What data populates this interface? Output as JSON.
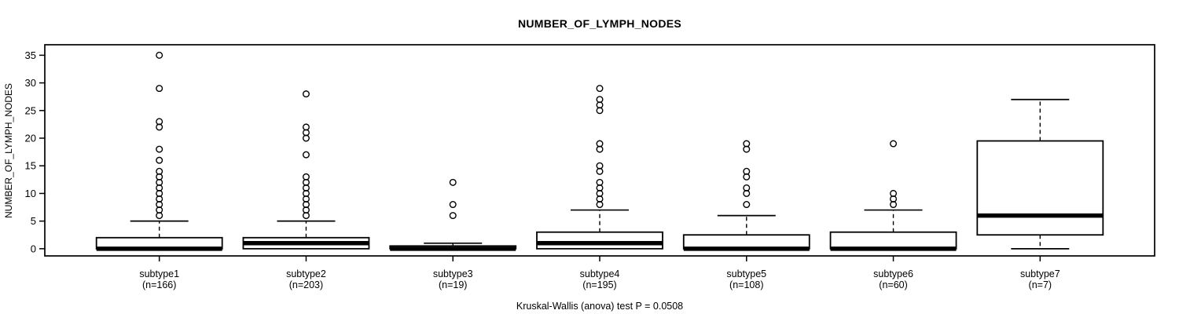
{
  "title": "NUMBER_OF_LYMPH_NODES",
  "chart_data": {
    "type": "boxplot",
    "title": "NUMBER_OF_LYMPH_NODES",
    "ylabel": "NUMBER_OF_LYMPH_NODES",
    "footnote": "Kruskal-Wallis (anova) test P = 0.0508",
    "y_ticks": [
      0,
      5,
      10,
      15,
      20,
      25,
      30,
      35
    ],
    "ylim": [
      0,
      35
    ],
    "grid": false,
    "legend": "none",
    "colors": {
      "line": "#000000",
      "box_fill": "#ffffff",
      "background": "#ffffff"
    },
    "groups": [
      {
        "label": "subtype1",
        "n": 166,
        "n_label": "(n=166)",
        "stats": {
          "low": 0,
          "q1": 0,
          "median": 0,
          "q3": 2,
          "high": 5
        },
        "outliers": [
          6,
          7,
          8,
          9,
          10,
          11,
          12,
          13,
          14,
          16,
          18,
          22,
          23,
          29,
          35
        ]
      },
      {
        "label": "subtype2",
        "n": 203,
        "n_label": "(n=203)",
        "stats": {
          "low": 0,
          "q1": 0,
          "median": 1,
          "q3": 2,
          "high": 5
        },
        "outliers": [
          6,
          7,
          8,
          9,
          10,
          11,
          12,
          13,
          17,
          20,
          21,
          22,
          28
        ]
      },
      {
        "label": "subtype3",
        "n": 19,
        "n_label": "(n=19)",
        "stats": {
          "low": 0,
          "q1": 0,
          "median": 0,
          "q3": 0.5,
          "high": 1
        },
        "outliers": [
          6,
          8,
          12
        ]
      },
      {
        "label": "subtype4",
        "n": 195,
        "n_label": "(n=195)",
        "stats": {
          "low": 0,
          "q1": 0,
          "median": 1,
          "q3": 3,
          "high": 7
        },
        "outliers": [
          8,
          9,
          10,
          11,
          12,
          14,
          15,
          18,
          19,
          25,
          26,
          27,
          29
        ]
      },
      {
        "label": "subtype5",
        "n": 108,
        "n_label": "(n=108)",
        "stats": {
          "low": 0,
          "q1": 0,
          "median": 0,
          "q3": 2.5,
          "high": 6
        },
        "outliers": [
          8,
          10,
          11,
          13,
          14,
          18,
          19
        ]
      },
      {
        "label": "subtype6",
        "n": 60,
        "n_label": "(n=60)",
        "stats": {
          "low": 0,
          "q1": 0,
          "median": 0,
          "q3": 3,
          "high": 7
        },
        "outliers": [
          8,
          9,
          10,
          19
        ]
      },
      {
        "label": "subtype7",
        "n": 7,
        "n_label": "(n=7)",
        "stats": {
          "low": 0,
          "q1": 2.5,
          "median": 6,
          "q3": 19.5,
          "high": 27
        },
        "outliers": []
      }
    ]
  }
}
